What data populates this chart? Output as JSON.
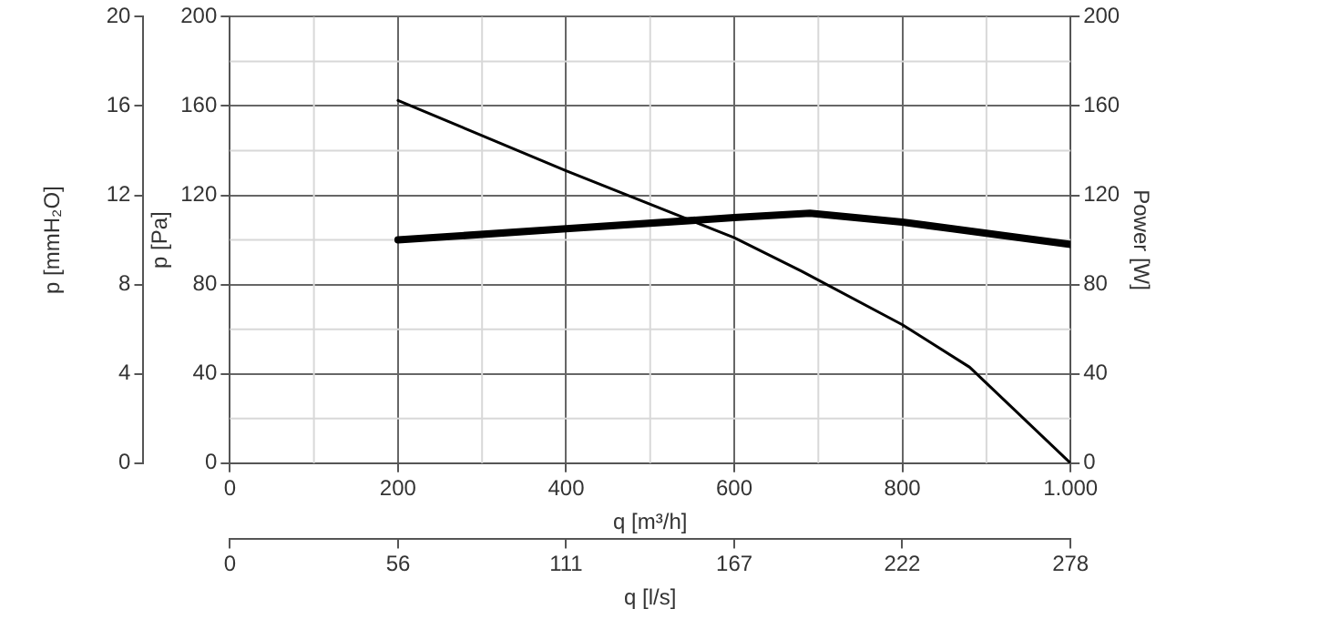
{
  "chart_data": {
    "type": "line",
    "xlabel": "q [m³/h]",
    "ylabel": "p [Pa]",
    "y2label": "Power [W]",
    "y3label": "p [mmH₂O]",
    "x2label": "q [l/s]",
    "xlim": [
      0,
      1000
    ],
    "xticks": [
      0,
      200,
      400,
      600,
      800,
      {
        "value": 1000,
        "label": "1.000"
      }
    ],
    "x2lim": [
      0,
      277.8
    ],
    "x2ticks": [
      0,
      {
        "value": 55.6,
        "label": "56"
      },
      {
        "value": 111.1,
        "label": "111"
      },
      {
        "value": 166.7,
        "label": "167"
      },
      {
        "value": 222.2,
        "label": "222"
      },
      {
        "value": 277.8,
        "label": "278"
      }
    ],
    "ylim": [
      0,
      200
    ],
    "yticks": [
      0,
      40,
      80,
      120,
      160,
      200
    ],
    "y2lim": [
      0,
      200
    ],
    "y2ticks": [
      0,
      40,
      80,
      120,
      160,
      200
    ],
    "y3lim": [
      0,
      20
    ],
    "y3ticks": [
      0,
      4,
      8,
      12,
      16,
      20
    ],
    "grid": true,
    "legend": false,
    "marker": "none",
    "line_style": "solid",
    "series": [
      {
        "color": "#000000",
        "x": [
          200,
          400,
          600,
          680,
          800,
          880,
          1000
        ],
        "values": [
          162.5,
          131,
          101,
          86,
          62,
          43,
          0
        ]
      },
      {
        "color": "#000000",
        "axis": "y2",
        "x": [
          200,
          400,
          600,
          690,
          800,
          900,
          1000
        ],
        "values": [
          100,
          105,
          110,
          112,
          108,
          103,
          98
        ]
      }
    ]
  }
}
